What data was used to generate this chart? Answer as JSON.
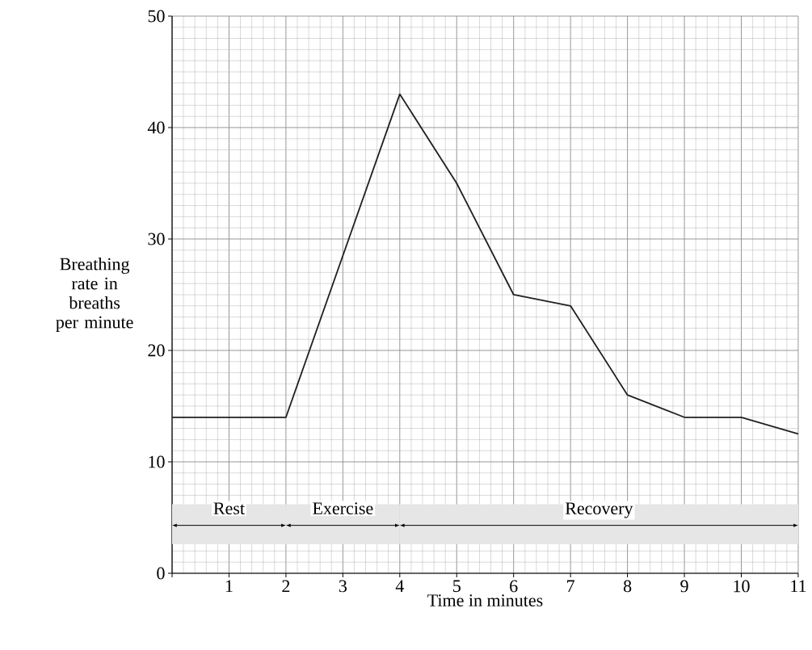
{
  "chart_data": {
    "type": "line",
    "xlabel": "Time in minutes",
    "ylabel": "Breathing rate in breaths per minute",
    "x": [
      0,
      2,
      4,
      5,
      6,
      7,
      8,
      9,
      10,
      11
    ],
    "values": [
      14,
      14,
      43,
      35,
      25,
      24,
      16,
      14,
      14,
      12.5
    ],
    "color": "#231f20",
    "xlim": [
      0,
      11
    ],
    "ylim": [
      0,
      50
    ],
    "xticks": [
      {
        "value": 0,
        "label": null
      },
      1,
      2,
      3,
      4,
      5,
      6,
      7,
      8,
      9,
      10,
      11
    ],
    "yticks": [
      0,
      10,
      20,
      30,
      40,
      50
    ],
    "grid": true,
    "bands": [
      {
        "axis": "x",
        "from": 0,
        "to": 2,
        "label": "Rest",
        "color": "#e6e6e6"
      },
      {
        "axis": "x",
        "from": 2,
        "to": 4,
        "label": "Exercise",
        "color": "#e6e6e6"
      },
      {
        "axis": "x",
        "from": 4,
        "to": 11,
        "label": "Recovery",
        "color": "#e6e6e6"
      }
    ]
  }
}
